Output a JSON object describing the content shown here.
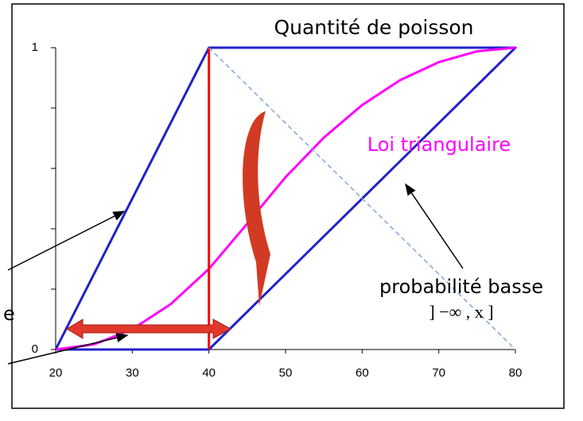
{
  "chart_data": {
    "type": "line",
    "title": "Quantité de poisson",
    "xlim": [
      20,
      80
    ],
    "xticks": [
      20,
      30,
      40,
      50,
      60,
      70,
      80
    ],
    "ylim": [
      0,
      1
    ],
    "yticks": [
      0,
      1
    ],
    "y_minor_ticks": [
      0.2,
      0.4,
      0.6,
      0.8
    ],
    "series": [
      {
        "color": "#2121c9",
        "width": 3,
        "x": [
          20,
          40,
          80,
          40,
          20
        ],
        "values": [
          0,
          1,
          1,
          0,
          0
        ]
      },
      {
        "name": "Loi triangulaire",
        "color": "#ff00ff",
        "width": 3,
        "x": [
          20,
          25,
          30,
          35,
          40,
          45,
          50,
          55,
          60,
          65,
          70,
          75,
          80
        ],
        "values": [
          0,
          0.017,
          0.067,
          0.15,
          0.267,
          0.417,
          0.571,
          0.702,
          0.81,
          0.893,
          0.952,
          0.988,
          1
        ]
      },
      {
        "color": "#ff0000",
        "width": 3,
        "x": [
          40,
          40
        ],
        "values": [
          0,
          1
        ]
      },
      {
        "color": "#7fa6d9",
        "width": 1.5,
        "dash": true,
        "x": [
          40,
          80
        ],
        "values": [
          1,
          0
        ]
      }
    ],
    "annotations": [
      "probabilité basse",
      "] −∞ , x ]",
      "e"
    ]
  }
}
